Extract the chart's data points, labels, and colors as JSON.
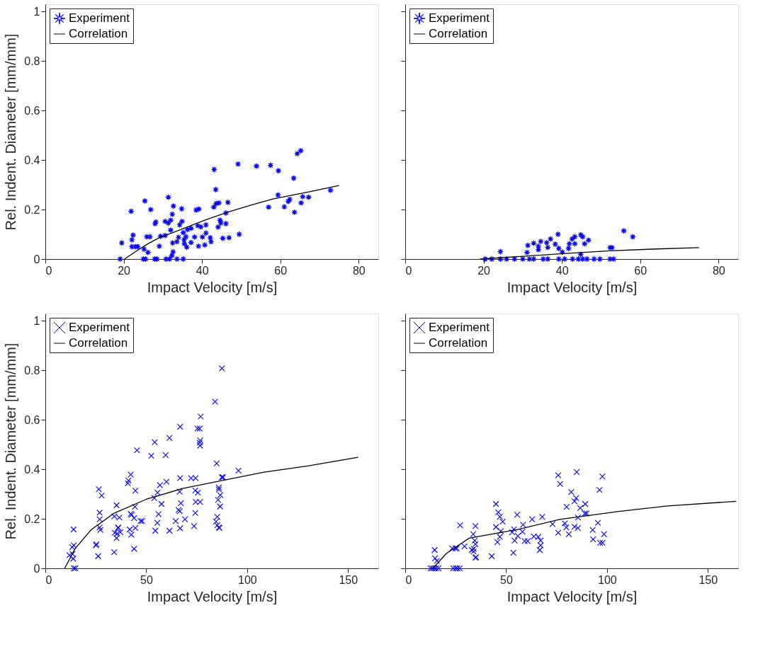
{
  "chart_data": [
    {
      "type": "scatter",
      "xlabel": "Impact Velocity [m/s]",
      "ylabel": "Rel. Indent. Diameter [mm/mm]",
      "xlim": [
        0,
        85
      ],
      "ylim": [
        0,
        1.03
      ],
      "xticks": [
        0,
        20,
        40,
        60,
        80
      ],
      "yticks": [
        0,
        0.2,
        0.4,
        0.6,
        0.8,
        1
      ],
      "legend": "top left",
      "series": [
        {
          "name": "Experiment",
          "marker": "star",
          "color": "#0000ff",
          "x": [
            19.1,
            19.5,
            21.9,
            22.1,
            22.4,
            22.1,
            23,
            23.6,
            25.2,
            25.4,
            26.2,
            25,
            25.6,
            25.9,
            26.7,
            26.9,
            27.9,
            28.5,
            28,
            28.2,
            29.1,
            29.4,
            30.6,
            30.6,
            30.8,
            31.4,
            31.7,
            31.4,
            32,
            32,
            32.4,
            32.5,
            32.6,
            32.3,
            32.7,
            33.6,
            33.6,
            34,
            34.3,
            34.8,
            34.9,
            35.2,
            35.2,
            35.4,
            35.5,
            35.9,
            36.1,
            36.3,
            37.2,
            37.2,
            38.1,
            38.5,
            39.2,
            38.9,
            39.1,
            39.7,
            40.1,
            40.7,
            41,
            41,
            42.1,
            42.3,
            43,
            43.1,
            43.5,
            43.6,
            44.1,
            44.3,
            44.6,
            44.8,
            45.3,
            46.1,
            46.1,
            46.6,
            46.9,
            49.2,
            49.5,
            53.9,
            57,
            57.5,
            59.4,
            59.5,
            61,
            62,
            62.4,
            63.4,
            63.6,
            64.3,
            65.2,
            65.3,
            65.7,
            67.2,
            72.8
          ],
          "values": [
            0,
            0.065,
            0.193,
            0.078,
            0.097,
            0.05,
            0.05,
            0.05,
            0.04,
            0.235,
            0.027,
            0,
            0,
            0.09,
            0.09,
            0.2,
            0,
            0,
            0.143,
            0.15,
            0.052,
            0.092,
            0.095,
            0.152,
            0,
            0.25,
            0,
            0.145,
            0.157,
            0.117,
            0.181,
            0.065,
            0.029,
            0.014,
            0.214,
            0,
            0.07,
            0.088,
            0.138,
            0.203,
            0.152,
            0,
            0.107,
            0.078,
            0.062,
            0.09,
            0.048,
            0.119,
            0.124,
            0.067,
            0.089,
            0.198,
            0.202,
            0.135,
            0.052,
            0.13,
            0.089,
            0.057,
            0.138,
            0.105,
            0.086,
            0.07,
            0.21,
            0.362,
            0.281,
            0.224,
            0.129,
            0.227,
            0.157,
            0.146,
            0.084,
            0.186,
            0.143,
            0.229,
            0.086,
            0.384,
            0.1,
            0.376,
            0.21,
            0.379,
            0.259,
            0.357,
            0.211,
            0.233,
            0.241,
            0.327,
            0.189,
            0.426,
            0.438,
            0.227,
            0.252,
            0.25,
            0.278
          ]
        },
        {
          "name": "Correlation",
          "type": "line",
          "line_style": "solid",
          "color": "#000000",
          "x": [
            20.2,
            23.3,
            26.2,
            29.1,
            34.9,
            40.7,
            46.5,
            52.3,
            58.1,
            66.8,
            75
          ],
          "values": [
            0,
            0.033,
            0.062,
            0.086,
            0.121,
            0.157,
            0.189,
            0.217,
            0.243,
            0.27,
            0.297
          ]
        }
      ]
    },
    {
      "type": "scatter",
      "xlabel": "Impact Velocity [m/s]",
      "xlim": [
        0,
        85
      ],
      "ylim": [
        0,
        1.03
      ],
      "xticks": [
        0,
        20,
        40,
        60,
        80
      ],
      "yticks": [
        0,
        0.2,
        0.4,
        0.6,
        0.8,
        1
      ],
      "tick_labels": "x",
      "legend": "top left",
      "series": [
        {
          "name": "Experiment",
          "marker": "star",
          "color": "#0000ff",
          "x": [
            20.4,
            22.1,
            24.3,
            25.9,
            27.9,
            30,
            31.7,
            32.8,
            35.2,
            36.4,
            39.2,
            40.7,
            42.7,
            44.2,
            45.3,
            46.4,
            48.2,
            49.7,
            52.3,
            53.2,
            24.3,
            31.1,
            31.3,
            32.8,
            34,
            34,
            34.6,
            36.1,
            36.4,
            37.1,
            38.3,
            39,
            39.2,
            40.1,
            41.7,
            41.9,
            42.6,
            43.3,
            43.3,
            44.8,
            45.3,
            44.8,
            45.8,
            46.8,
            52.3,
            52.8,
            55.8,
            58.1
          ],
          "values": [
            0,
            0,
            0,
            0,
            0,
            0,
            0,
            0,
            0,
            0,
            0,
            0,
            0,
            0,
            0,
            0,
            0,
            0,
            0,
            0,
            0.03,
            0.027,
            0.055,
            0.064,
            0.038,
            0.052,
            0.071,
            0.066,
            0.047,
            0.081,
            0.06,
            0.1,
            0.043,
            0.028,
            0.043,
            0.062,
            0.081,
            0.09,
            0.062,
            0.098,
            0.09,
            0.019,
            0.062,
            0.076,
            0.046,
            0.046,
            0.114,
            0.09
          ]
        },
        {
          "name": "Correlation",
          "type": "line",
          "line_style": "solid",
          "color": "#000000",
          "x": [
            19.1,
            30,
            39.5,
            52.3,
            63,
            75
          ],
          "values": [
            0,
            0.011,
            0.021,
            0.033,
            0.04,
            0.046
          ]
        }
      ]
    },
    {
      "type": "scatter",
      "xlabel": "Impact Velocity [m/s]",
      "ylabel": "Rel. Indent. Diameter [mm/mm]",
      "xlim": [
        0,
        165
      ],
      "ylim": [
        0,
        1.03
      ],
      "xticks": [
        0,
        50,
        100,
        150
      ],
      "yticks": [
        0,
        0.2,
        0.4,
        0.6,
        0.8,
        1
      ],
      "legend": "top left",
      "series": [
        {
          "name": "Experiment",
          "marker": "cross",
          "color": "#0000ff",
          "x": [
            87.5,
            84.1,
            77,
            75.4,
            76.5,
            76.7,
            76.5,
            76.7,
            66.8,
            61.5,
            54.2,
            52.5,
            59.6,
            45.4,
            84.9,
            95.7,
            42.3,
            41.2,
            40.9,
            44.6,
            26.5,
            27.9,
            56.8,
            60,
            66.8,
            72.2,
            74.5,
            87.5,
            88,
            86,
            86,
            86.7,
            85.6,
            86.6,
            74.3,
            75.6,
            74.5,
            76.7,
            66.6,
            67.2,
            55.6,
            54,
            57.6,
            66,
            66.6,
            74.3,
            56.1,
            35.3,
            26.9,
            26.9,
            26.9,
            27.3,
            34.2,
            36.7,
            42.3,
            42.7,
            44,
            44.4,
            47.2,
            48,
            55.5,
            64.6,
            69.2,
            66.8,
            73.7,
            61.5,
            54.5,
            85.2,
            84.6,
            85.2,
            86,
            86.3,
            36.1,
            36.1,
            34.4,
            35.6,
            37.2,
            35.3,
            41.8,
            42.6,
            44.6,
            44,
            34.1,
            25.1,
            25.3,
            26.2,
            14,
            14.1,
            13.3,
            13.5,
            11.9,
            13.8,
            14.1,
            14.9
          ],
          "values": [
            0.808,
            0.674,
            0.614,
            0.565,
            0.565,
            0.517,
            0.508,
            0.496,
            0.572,
            0.527,
            0.51,
            0.455,
            0.458,
            0.477,
            0.424,
            0.395,
            0.379,
            0.355,
            0.344,
            0.314,
            0.32,
            0.294,
            0.336,
            0.35,
            0.365,
            0.365,
            0.365,
            0.368,
            0.368,
            0.327,
            0.319,
            0.296,
            0.277,
            0.25,
            0.315,
            0.306,
            0.268,
            0.268,
            0.31,
            0.263,
            0.306,
            0.284,
            0.26,
            0.236,
            0.231,
            0.224,
            0.219,
            0.255,
            0.225,
            0.198,
            0.165,
            0.155,
            0.21,
            0.205,
            0.22,
            0.216,
            0.203,
            0.249,
            0.191,
            0.191,
            0.184,
            0.191,
            0.198,
            0.162,
            0.171,
            0.152,
            0.152,
            0.208,
            0.189,
            0.174,
            0.165,
            0.163,
            0.165,
            0.163,
            0.144,
            0.141,
            0.146,
            0.122,
            0.157,
            0.136,
            0.163,
            0.079,
            0.065,
            0.093,
            0.097,
            0.049,
            0.157,
            0.093,
            0.086,
            0.058,
            0.053,
            0.039,
            0,
            0
          ]
        },
        {
          "name": "Correlation",
          "type": "line",
          "line_style": "solid",
          "color": "#000000",
          "x": [
            9.6,
            14.7,
            22.6,
            33.9,
            50,
            67.7,
            84.7,
            108.4,
            130,
            155
          ],
          "values": [
            0,
            0.079,
            0.155,
            0.222,
            0.279,
            0.322,
            0.35,
            0.389,
            0.414,
            0.449
          ]
        }
      ]
    },
    {
      "type": "scatter",
      "xlabel": "Impact Velocity [m/s]",
      "xlim": [
        0,
        165
      ],
      "ylim": [
        0,
        1.03
      ],
      "xticks": [
        0,
        50,
        100,
        150
      ],
      "yticks": [
        0,
        0.2,
        0.4,
        0.6,
        0.8,
        1
      ],
      "tick_labels": "x",
      "legend": "top left",
      "series": [
        {
          "name": "Experiment",
          "marker": "cross",
          "color": "#0000ff",
          "x": [
            12.6,
            13.5,
            14.4,
            15.3,
            16.5,
            14.6,
            14.8,
            15.7,
            23.8,
            25,
            25.8,
            27,
            23.3,
            24.9,
            25.5,
            27.2,
            29.4,
            33,
            33.9,
            33.7,
            34.5,
            34.8,
            34.8,
            33.9,
            34.8,
            35.1,
            42.9,
            45,
            46.1,
            46.9,
            48.3,
            45,
            47.4,
            46.9,
            45.7,
            53.6,
            53,
            53.9,
            54.2,
            55.5,
            55.8,
            58.1,
            58.4,
            59.2,
            60.7,
            62.9,
            63.7,
            65.9,
            67.1,
            67.1,
            66.7,
            67.9,
            73,
            75.8,
            76.8,
            75.8,
            79.1,
            79.8,
            80,
            81.1,
            82.3,
            83.9,
            84.7,
            85,
            83.9,
            85.6,
            85.6,
            86.7,
            89.2,
            89,
            89.9,
            92.9,
            93.1,
            95.5,
            96.3,
            97.7,
            96.6,
            97.8,
            98.5
          ],
          "values": [
            0,
            0,
            0,
            0,
            0,
            0.074,
            0.041,
            0.03,
            0,
            0,
            0,
            0,
            0.081,
            0.081,
            0.081,
            0.174,
            0.089,
            0.074,
            0.079,
            0.138,
            0.112,
            0.098,
            0.171,
            0.068,
            0.043,
            0.045,
            0.049,
            0.26,
            0.227,
            0.208,
            0.189,
            0.167,
            0.15,
            0.127,
            0.106,
            0.063,
            0.146,
            0.158,
            0.112,
            0.217,
            0.131,
            0.148,
            0.176,
            0.11,
            0.11,
            0.198,
            0.129,
            0.127,
            0.112,
            0.093,
            0.074,
            0.208,
            0.179,
            0.376,
            0.341,
            0.144,
            0.182,
            0.165,
            0.248,
            0.138,
            0.308,
            0.271,
            0.284,
            0.389,
            0.168,
            0.163,
            0.205,
            0.244,
            0.26,
            0.222,
            0.222,
            0.155,
            0.117,
            0.184,
            0.317,
            0.371,
            0.103,
            0.103,
            0.138
          ]
        },
        {
          "name": "Correlation",
          "type": "line",
          "line_style": "solid",
          "color": "#000000",
          "x": [
            13.7,
            20.4,
            31.7,
            56.2,
            76.6,
            105.8,
            130,
            164
          ],
          "values": [
            0,
            0.06,
            0.122,
            0.158,
            0.198,
            0.23,
            0.252,
            0.271
          ]
        }
      ]
    }
  ]
}
